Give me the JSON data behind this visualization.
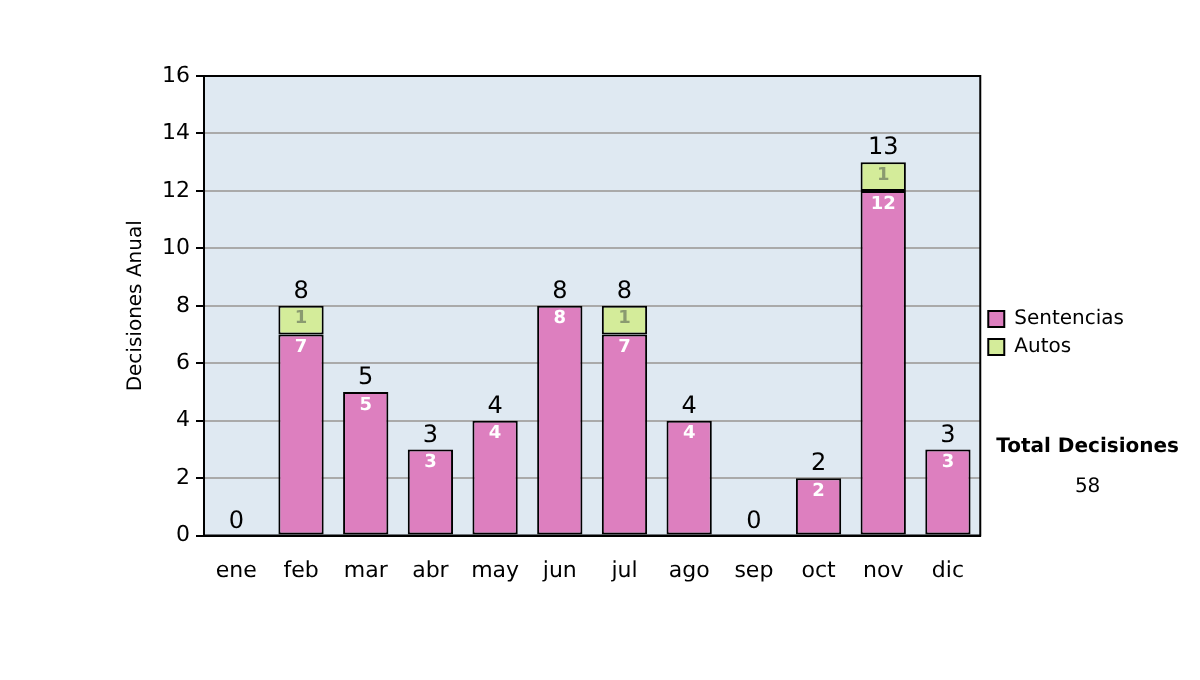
{
  "chart_data": {
    "type": "bar",
    "stacked": true,
    "ylabel": "Decisiones Anual",
    "categories": [
      "ene",
      "feb",
      "mar",
      "abr",
      "may",
      "jun",
      "jul",
      "ago",
      "sep",
      "oct",
      "nov",
      "dic"
    ],
    "series": [
      {
        "name": "Sentencias",
        "color": "#dd7fbf",
        "values": [
          0,
          7,
          5,
          3,
          4,
          8,
          7,
          4,
          0,
          2,
          12,
          3
        ],
        "value_labels": [
          null,
          "7",
          "5",
          "3",
          "4",
          "8",
          "7",
          "4",
          null,
          "2",
          "12",
          "3"
        ]
      },
      {
        "name": "Autos",
        "color": "#d4ec9a",
        "values": [
          0,
          1,
          0,
          0,
          0,
          0,
          1,
          0,
          0,
          0,
          1,
          0
        ],
        "value_labels": [
          null,
          "1",
          null,
          null,
          null,
          null,
          "1",
          null,
          null,
          null,
          "1",
          null
        ]
      }
    ],
    "totals": [
      "0",
      "8",
      "5",
      "3",
      "4",
      "8",
      "8",
      "4",
      "0",
      "2",
      "13",
      "3"
    ],
    "ylim": [
      0,
      16
    ],
    "yticks": [
      0,
      2,
      4,
      6,
      8,
      10,
      12,
      14,
      16
    ],
    "grid": "y",
    "legend": "right",
    "annotations": [
      "Total Decisiones",
      "58"
    ]
  }
}
